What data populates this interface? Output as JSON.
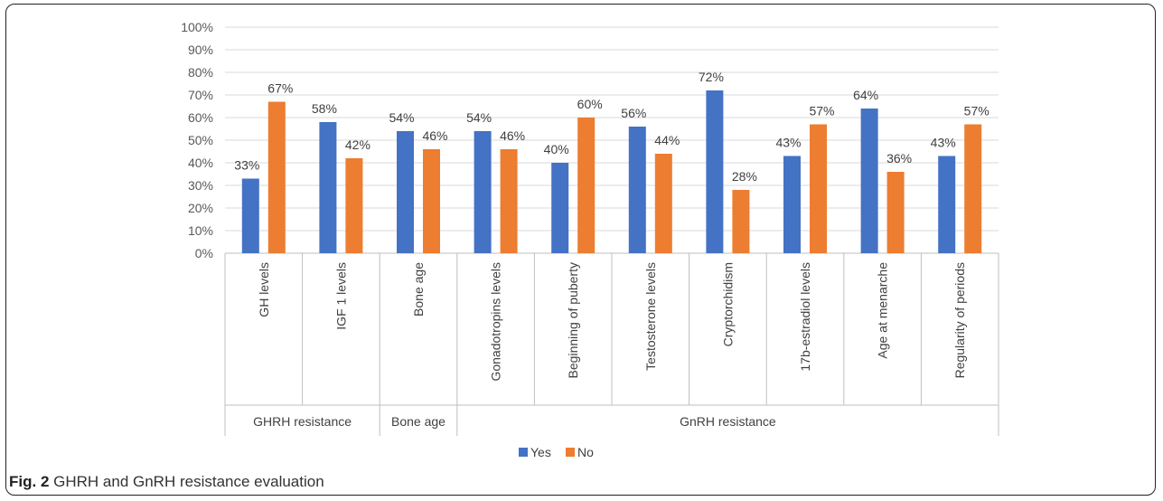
{
  "figure": {
    "caption_label": "Fig. 2",
    "caption_text": "GHRH and GnRH resistance evaluation"
  },
  "chart_data": {
    "type": "bar",
    "categories": [
      "GH levels",
      "IGF 1 levels",
      "Bone age",
      "Gonadotropins levels",
      "Beginning of puberty",
      "Testosterone levels",
      "Cryptorchidism",
      "17b-estradiol levels",
      "Age at menarche",
      "Regularity of periods"
    ],
    "groups": [
      {
        "label": "GHRH resistance",
        "from": 0,
        "to": 1
      },
      {
        "label": "Bone age",
        "from": 2,
        "to": 2
      },
      {
        "label": "GnRH resistance",
        "from": 3,
        "to": 9
      }
    ],
    "series": [
      {
        "name": "Yes",
        "color": "#4472c4",
        "values": [
          33,
          58,
          54,
          54,
          40,
          56,
          72,
          43,
          64,
          43
        ]
      },
      {
        "name": "No",
        "color": "#ed7d31",
        "values": [
          67,
          42,
          46,
          46,
          60,
          44,
          28,
          57,
          36,
          57
        ]
      }
    ],
    "value_labels": {
      "Yes": [
        "33%",
        "58%",
        "54%",
        "54%",
        "40%",
        "56%",
        "72%",
        "43%",
        "64%",
        "43%"
      ],
      "No": [
        "67%",
        "42%",
        "46%",
        "46%",
        "60%",
        "44%",
        "28%",
        "57%",
        "36%",
        "57%"
      ]
    },
    "ylim": [
      0,
      100
    ],
    "yticks": [
      "0%",
      "10%",
      "20%",
      "30%",
      "40%",
      "50%",
      "60%",
      "70%",
      "80%",
      "90%",
      "100%"
    ],
    "grid": true,
    "legend_position": "bottom"
  }
}
